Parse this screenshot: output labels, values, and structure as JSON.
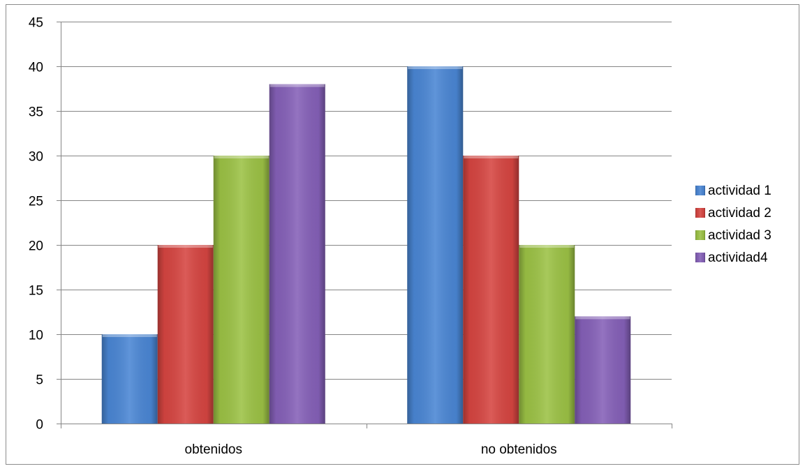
{
  "chart_data": {
    "type": "bar",
    "title": "",
    "xlabel": "",
    "ylabel": "",
    "categories": [
      "obtenidos",
      "no obtenidos"
    ],
    "series": [
      {
        "name": "actividad 1",
        "values": [
          10,
          40
        ],
        "color": "#4a86d4"
      },
      {
        "name": "actividad 2",
        "values": [
          20,
          30
        ],
        "color": "#d64541"
      },
      {
        "name": "actividad 3",
        "values": [
          30,
          20
        ],
        "color": "#9cc245"
      },
      {
        "name": "actividad4",
        "values": [
          38,
          12
        ],
        "color": "#8560b8"
      }
    ],
    "ylim": [
      0,
      45
    ],
    "yticks": [
      0,
      5,
      10,
      15,
      20,
      25,
      30,
      35,
      40,
      45
    ],
    "grid": true,
    "legend_position": "right"
  }
}
